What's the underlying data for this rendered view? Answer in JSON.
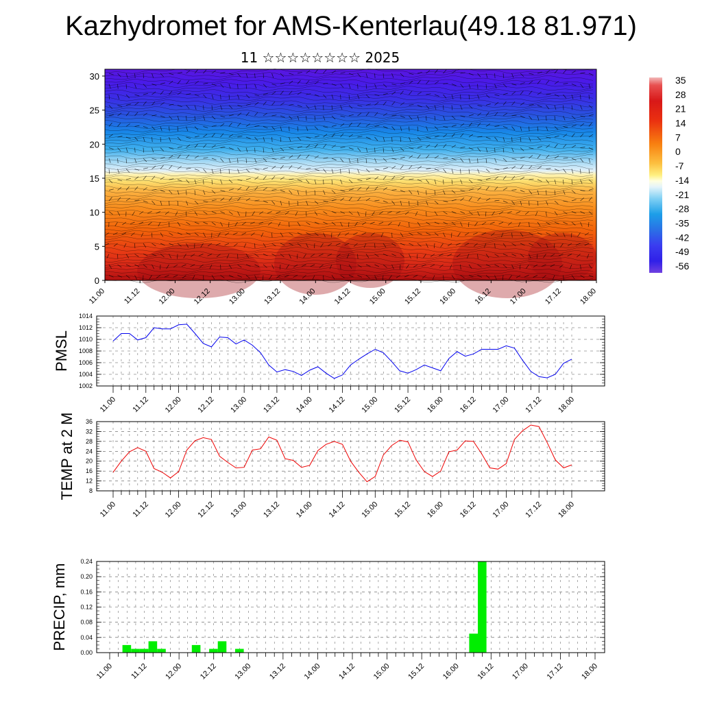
{
  "title": "Kazhydromet for AMS-Kenterlau(49.18 81.971)",
  "subtitle": "11 ☆☆☆☆☆☆☆☆ 2025",
  "colors": {
    "pmsl_line": "#0000ee",
    "temp_line": "#ee0000",
    "precip_bar": "#00ee00"
  },
  "chart_data": [
    {
      "type": "heatmap",
      "x_ticks": [
        "11.00",
        "11.12",
        "12.00",
        "12.12",
        "13.00",
        "13.12",
        "14.00",
        "14.12",
        "15.00",
        "15.12",
        "16.00",
        "16.12",
        "17.00",
        "17.12",
        "18.00"
      ],
      "y_ticks": [
        "0",
        "5",
        "10",
        "15",
        "20",
        "25",
        "30"
      ],
      "ylim": [
        0,
        31
      ],
      "colorbar_labels": [
        "35",
        "28",
        "21",
        "14",
        "7",
        "0",
        "-7",
        "-14",
        "-21",
        "-28",
        "-35",
        "-42",
        "-49",
        "-56"
      ],
      "colorbar_range": [
        -56,
        35
      ]
    },
    {
      "type": "line",
      "ylabel": "PMSL",
      "ylim": [
        1002,
        1014
      ],
      "y_ticks": [
        "1014",
        "1012",
        "1010",
        "1008",
        "1006",
        "1004",
        "1002"
      ],
      "x_ticks": [
        "11.00",
        "11.12",
        "12.00",
        "12.12",
        "13.00",
        "13.12",
        "14.00",
        "14.12",
        "15.00",
        "15.12",
        "16.00",
        "16.12",
        "17.00",
        "17.12",
        "18.00"
      ],
      "values": [
        1009.7,
        1011.0,
        1011.0,
        1009.9,
        1010.3,
        1012.0,
        1011.8,
        1011.8,
        1012.5,
        1012.6,
        1011.0,
        1009.3,
        1008.7,
        1010.4,
        1010.3,
        1009.2,
        1009.9,
        1009.0,
        1007.7,
        1005.6,
        1004.4,
        1004.8,
        1004.5,
        1003.8,
        1004.7,
        1005.3,
        1004.2,
        1003.3,
        1003.9,
        1005.6,
        1006.6,
        1007.5,
        1008.3,
        1007.7,
        1006.2,
        1004.6,
        1004.2,
        1004.8,
        1005.6,
        1005.1,
        1004.6,
        1006.7,
        1007.9,
        1007.1,
        1007.5,
        1008.3,
        1008.3,
        1008.3,
        1008.9,
        1008.5,
        1006.4,
        1004.5,
        1003.6,
        1003.4,
        1004.0,
        1005.9,
        1006.6
      ]
    },
    {
      "type": "line",
      "ylabel": "TEMP at 2 M",
      "ylim": [
        8,
        36
      ],
      "y_ticks": [
        "36",
        "32",
        "28",
        "24",
        "20",
        "16",
        "12",
        "8"
      ],
      "x_ticks": [
        "11.00",
        "11.12",
        "12.00",
        "12.12",
        "13.00",
        "13.12",
        "14.00",
        "14.12",
        "15.00",
        "15.12",
        "16.00",
        "16.12",
        "17.00",
        "17.12",
        "18.00"
      ],
      "values": [
        15.5,
        20.0,
        23.8,
        25.5,
        24.0,
        17.0,
        15.5,
        13.2,
        15.8,
        24.5,
        28.3,
        29.5,
        28.8,
        22.0,
        19.5,
        17.3,
        17.5,
        24.5,
        25.0,
        29.8,
        28.5,
        21.0,
        20.3,
        17.5,
        18.3,
        24.3,
        26.8,
        28.0,
        26.8,
        20.0,
        15.5,
        11.7,
        13.8,
        22.5,
        26.3,
        28.5,
        27.8,
        20.5,
        15.8,
        13.8,
        16.0,
        23.8,
        24.5,
        28.2,
        28.0,
        23.0,
        17.3,
        16.8,
        19.0,
        28.8,
        32.3,
        34.6,
        34.0,
        27.5,
        20.5,
        17.3,
        18.5
      ]
    },
    {
      "type": "bar",
      "ylabel": "PRECIP, mm",
      "ylim": [
        0,
        0.24
      ],
      "y_ticks": [
        "0.24",
        "0.20",
        "0.16",
        "0.12",
        "0.08",
        "0.04",
        "0.00"
      ],
      "x_ticks": [
        "11.00",
        "11.12",
        "12.00",
        "12.12",
        "13.00",
        "13.12",
        "14.00",
        "14.12",
        "15.00",
        "15.12",
        "16.00",
        "16.12",
        "17.00",
        "17.12",
        "18.00"
      ],
      "values": [
        0,
        0.02,
        0.01,
        0.01,
        0.03,
        0.01,
        0,
        0,
        0,
        0.02,
        0,
        0.01,
        0.03,
        0,
        0.01,
        0,
        0,
        0,
        0,
        0,
        0,
        0,
        0,
        0,
        0,
        0,
        0,
        0,
        0,
        0,
        0,
        0,
        0,
        0,
        0,
        0,
        0,
        0,
        0,
        0,
        0,
        0.05,
        0.24,
        0,
        0,
        0,
        0,
        0,
        0,
        0,
        0,
        0,
        0,
        0,
        0,
        0
      ]
    }
  ]
}
